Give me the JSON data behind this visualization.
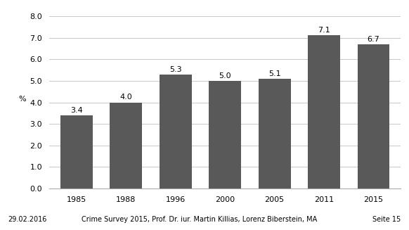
{
  "categories": [
    "1985",
    "1988",
    "1996",
    "2000",
    "2005",
    "2011",
    "2015"
  ],
  "values": [
    3.4,
    4.0,
    5.3,
    5.0,
    5.1,
    7.1,
    6.7
  ],
  "bar_color": "#595959",
  "ylabel": "%",
  "ylim": [
    0.0,
    8.0
  ],
  "yticks": [
    0.0,
    1.0,
    2.0,
    3.0,
    4.0,
    5.0,
    6.0,
    7.0,
    8.0
  ],
  "footer_left": "29.02.2016",
  "footer_center": "Crime Survey 2015, Prof. Dr. iur. Martin Killias, Lorenz Biberstein, MA",
  "footer_right": "Seite 15",
  "background_color": "#ffffff",
  "grid_color": "#c8c8c8",
  "tick_fontsize": 8.0,
  "bar_label_fontsize": 8.0,
  "footer_fontsize": 7.0,
  "bar_width": 0.65
}
